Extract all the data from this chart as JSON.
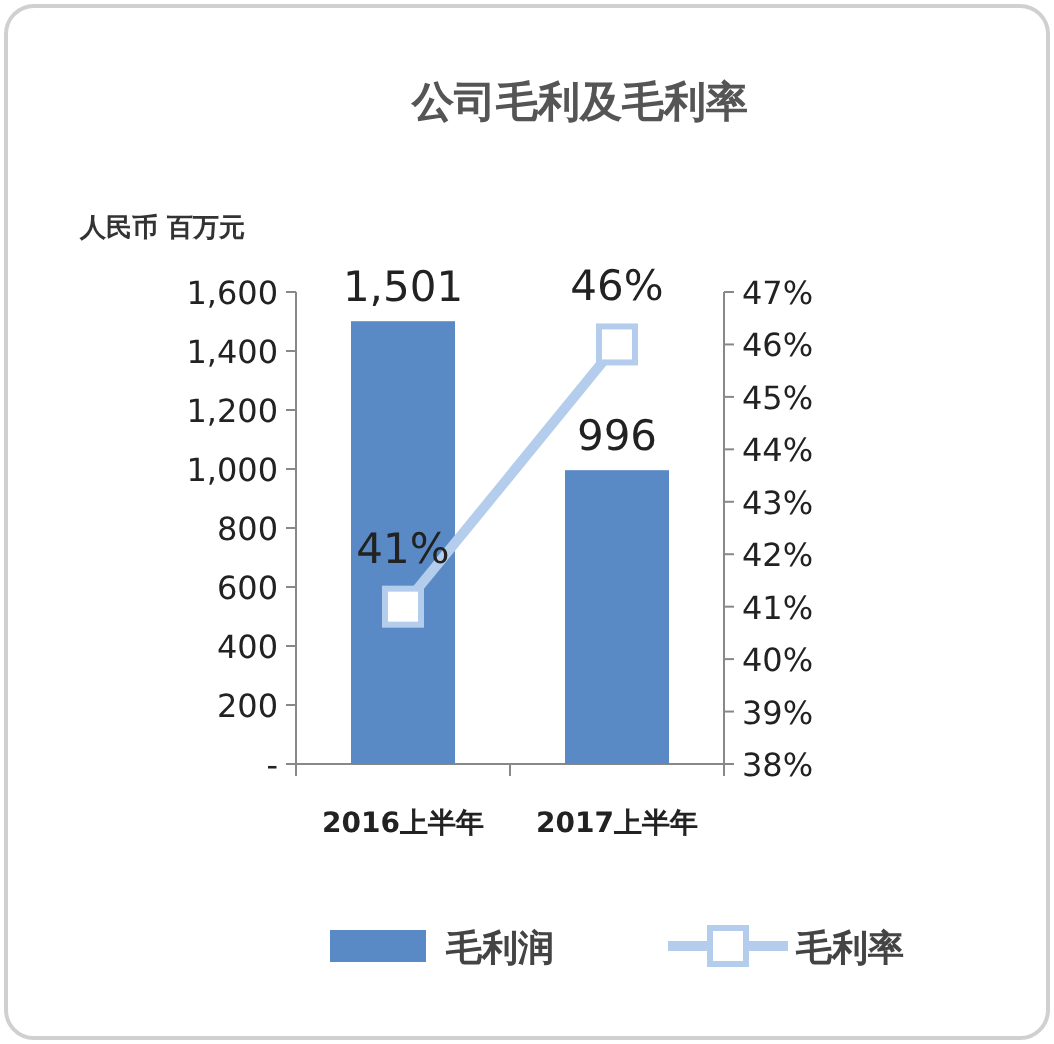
{
  "chart_data": {
    "type": "bar",
    "title": "公司毛利及毛利率",
    "ylabel": "人民币 百万元",
    "categories": [
      "2016上半年",
      "2017上半年"
    ],
    "series": [
      {
        "name": "毛利润",
        "color": "#5a8ac6",
        "values": [
          1501,
          996
        ],
        "value_labels": [
          "1,501",
          "996"
        ]
      },
      {
        "name": "毛利率",
        "type": "line",
        "axis": "y2",
        "color": "#b4cdec",
        "values": [
          41,
          46
        ],
        "value_labels": [
          "41%",
          "46%"
        ],
        "marker": "square"
      }
    ],
    "ylim": [
      0,
      1600
    ],
    "yticks": [
      {
        "value": 0,
        "label": "-"
      },
      200,
      400,
      600,
      800,
      {
        "value": 1000,
        "label": "1,000"
      },
      {
        "value": 1200,
        "label": "1,200"
      },
      {
        "value": 1400,
        "label": "1,400"
      },
      {
        "value": 1600,
        "label": "1,600"
      }
    ],
    "y2lim": [
      38,
      47
    ],
    "y2ticks": [
      {
        "value": 38,
        "label": "38%"
      },
      {
        "value": 39,
        "label": "39%"
      },
      {
        "value": 40,
        "label": "40%"
      },
      {
        "value": 41,
        "label": "41%"
      },
      {
        "value": 42,
        "label": "42%"
      },
      {
        "value": 43,
        "label": "43%"
      },
      {
        "value": 44,
        "label": "44%"
      },
      {
        "value": 45,
        "label": "45%"
      },
      {
        "value": 46,
        "label": "46%"
      },
      {
        "value": 47,
        "label": "47%"
      }
    ],
    "grid": false,
    "legend": "bottom"
  }
}
